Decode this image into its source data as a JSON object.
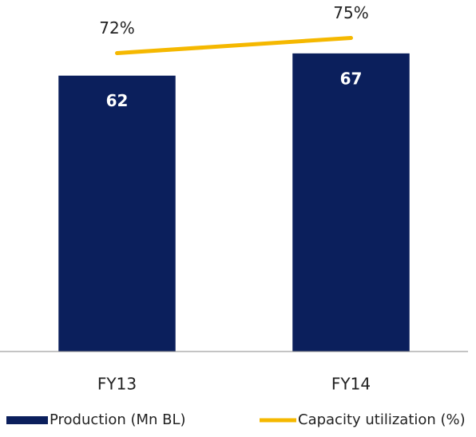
{
  "chart_data": {
    "type": "bar",
    "categories": [
      "FY13",
      "FY14"
    ],
    "series": [
      {
        "name": "Production (Mn BL)",
        "type": "bar",
        "color": "#0b1f5c",
        "values": [
          62,
          67
        ]
      },
      {
        "name": "Capacity utilization (%)",
        "type": "line",
        "axis": "y2",
        "color": "#f5b800",
        "values": [
          72,
          75
        ],
        "value_labels": [
          "72%",
          "75%"
        ]
      }
    ],
    "ylim": [
      0,
      79
    ],
    "y2lim": [
      13,
      82.5
    ],
    "grid": false,
    "legend": "bottom"
  }
}
